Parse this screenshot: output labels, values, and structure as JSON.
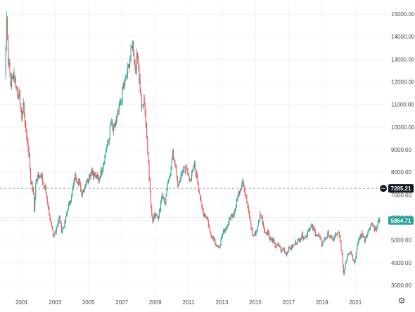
{
  "chart_data": {
    "type": "candlestick",
    "title": "",
    "xlabel": "",
    "ylabel": "",
    "x_ticks": [
      "2001",
      "2003",
      "2005",
      "2007",
      "2009",
      "2011",
      "2013",
      "2015",
      "2017",
      "2019",
      "2021"
    ],
    "y_ticks": [
      "3000.00",
      "4000.00",
      "5000.00",
      "6000.00",
      "7000.00",
      "8000.00",
      "9000.00",
      "10000.00",
      "11000.00",
      "12000.00",
      "13000.00",
      "14000.00",
      "15000.00"
    ],
    "xlim": [
      1999.7,
      2022.8
    ],
    "ylim": [
      2500,
      15500
    ],
    "grid": true,
    "up_color": "#26a69a",
    "down_color": "#ef5350",
    "series": [
      {
        "points": [
          [
            2000.0,
            12300
          ],
          [
            2000.1,
            15000
          ],
          [
            2000.2,
            13000
          ],
          [
            2000.35,
            11900
          ],
          [
            2000.5,
            12400
          ],
          [
            2000.7,
            11700
          ],
          [
            2000.9,
            11200
          ],
          [
            2001.0,
            10500
          ],
          [
            2001.1,
            11000
          ],
          [
            2001.25,
            9800
          ],
          [
            2001.45,
            8700
          ],
          [
            2001.55,
            7600
          ],
          [
            2001.7,
            7100
          ],
          [
            2001.75,
            6300
          ],
          [
            2001.85,
            7600
          ],
          [
            2002.0,
            8000
          ],
          [
            2002.2,
            7700
          ],
          [
            2002.4,
            7300
          ],
          [
            2002.6,
            6400
          ],
          [
            2002.75,
            5700
          ],
          [
            2002.9,
            5100
          ],
          [
            2003.1,
            5600
          ],
          [
            2003.25,
            6000
          ],
          [
            2003.4,
            5400
          ],
          [
            2003.6,
            5800
          ],
          [
            2003.8,
            6500
          ],
          [
            2004.0,
            7000
          ],
          [
            2004.2,
            7800
          ],
          [
            2004.4,
            7600
          ],
          [
            2004.6,
            7100
          ],
          [
            2004.8,
            7400
          ],
          [
            2005.0,
            7800
          ],
          [
            2005.2,
            8100
          ],
          [
            2005.4,
            7800
          ],
          [
            2005.6,
            7700
          ],
          [
            2005.8,
            8100
          ],
          [
            2006.0,
            8800
          ],
          [
            2006.2,
            9400
          ],
          [
            2006.35,
            10200
          ],
          [
            2006.5,
            9800
          ],
          [
            2006.7,
            10400
          ],
          [
            2006.9,
            11000
          ],
          [
            2007.1,
            11800
          ],
          [
            2007.3,
            12300
          ],
          [
            2007.5,
            13100
          ],
          [
            2007.65,
            13700
          ],
          [
            2007.8,
            12600
          ],
          [
            2007.95,
            13300
          ],
          [
            2008.05,
            12100
          ],
          [
            2008.2,
            10800
          ],
          [
            2008.35,
            11200
          ],
          [
            2008.45,
            10000
          ],
          [
            2008.55,
            9000
          ],
          [
            2008.65,
            7700
          ],
          [
            2008.75,
            6600
          ],
          [
            2008.85,
            5800
          ],
          [
            2009.0,
            6200
          ],
          [
            2009.2,
            6000
          ],
          [
            2009.4,
            7000
          ],
          [
            2009.6,
            6600
          ],
          [
            2009.75,
            7400
          ],
          [
            2009.9,
            8000
          ],
          [
            2010.05,
            8800
          ],
          [
            2010.2,
            8400
          ],
          [
            2010.35,
            7400
          ],
          [
            2010.5,
            7700
          ],
          [
            2010.7,
            8200
          ],
          [
            2010.9,
            8100
          ],
          [
            2011.05,
            7700
          ],
          [
            2011.2,
            7900
          ],
          [
            2011.35,
            8300
          ],
          [
            2011.5,
            7800
          ],
          [
            2011.6,
            7300
          ],
          [
            2011.75,
            6600
          ],
          [
            2011.9,
            6200
          ],
          [
            2012.1,
            6000
          ],
          [
            2012.3,
            5300
          ],
          [
            2012.5,
            5100
          ],
          [
            2012.65,
            4800
          ],
          [
            2012.8,
            4600
          ],
          [
            2012.95,
            5000
          ],
          [
            2013.1,
            5400
          ],
          [
            2013.3,
            5600
          ],
          [
            2013.5,
            6000
          ],
          [
            2013.7,
            6200
          ],
          [
            2013.9,
            6800
          ],
          [
            2014.1,
            7300
          ],
          [
            2014.25,
            7700
          ],
          [
            2014.4,
            7000
          ],
          [
            2014.55,
            6400
          ],
          [
            2014.7,
            5800
          ],
          [
            2014.85,
            5200
          ],
          [
            2015.0,
            5300
          ],
          [
            2015.15,
            5600
          ],
          [
            2015.3,
            6200
          ],
          [
            2015.45,
            5800
          ],
          [
            2015.6,
            5300
          ],
          [
            2015.75,
            5400
          ],
          [
            2015.9,
            5000
          ],
          [
            2016.05,
            5000
          ],
          [
            2016.2,
            4700
          ],
          [
            2016.4,
            4800
          ],
          [
            2016.55,
            4500
          ],
          [
            2016.7,
            4600
          ],
          [
            2016.85,
            4400
          ],
          [
            2017.0,
            4600
          ],
          [
            2017.2,
            4700
          ],
          [
            2017.4,
            4900
          ],
          [
            2017.6,
            5000
          ],
          [
            2017.8,
            5200
          ],
          [
            2018.0,
            5100
          ],
          [
            2018.2,
            5500
          ],
          [
            2018.4,
            5600
          ],
          [
            2018.6,
            5300
          ],
          [
            2018.8,
            5200
          ],
          [
            2019.0,
            4800
          ],
          [
            2019.2,
            5100
          ],
          [
            2019.4,
            5300
          ],
          [
            2019.6,
            5000
          ],
          [
            2019.8,
            5200
          ],
          [
            2020.0,
            5300
          ],
          [
            2020.1,
            4900
          ],
          [
            2020.2,
            4300
          ],
          [
            2020.3,
            3500
          ],
          [
            2020.4,
            4000
          ],
          [
            2020.55,
            4400
          ],
          [
            2020.7,
            4500
          ],
          [
            2020.85,
            4200
          ],
          [
            2020.95,
            4000
          ],
          [
            2021.1,
            4700
          ],
          [
            2021.25,
            5100
          ],
          [
            2021.4,
            5300
          ],
          [
            2021.55,
            5000
          ],
          [
            2021.7,
            5200
          ],
          [
            2021.85,
            5500
          ],
          [
            2022.0,
            5700
          ],
          [
            2022.15,
            5400
          ],
          [
            2022.3,
            5600
          ],
          [
            2022.45,
            5900
          ]
        ]
      }
    ],
    "price_lines": [
      {
        "label": "7285.21",
        "value": 7285.21,
        "color": "#131722",
        "style": "dashed"
      },
      {
        "label": "5864.71",
        "value": 5864.71,
        "color": "#26a69a",
        "style": "dotted"
      }
    ]
  },
  "settings_icon": "gear-icon"
}
